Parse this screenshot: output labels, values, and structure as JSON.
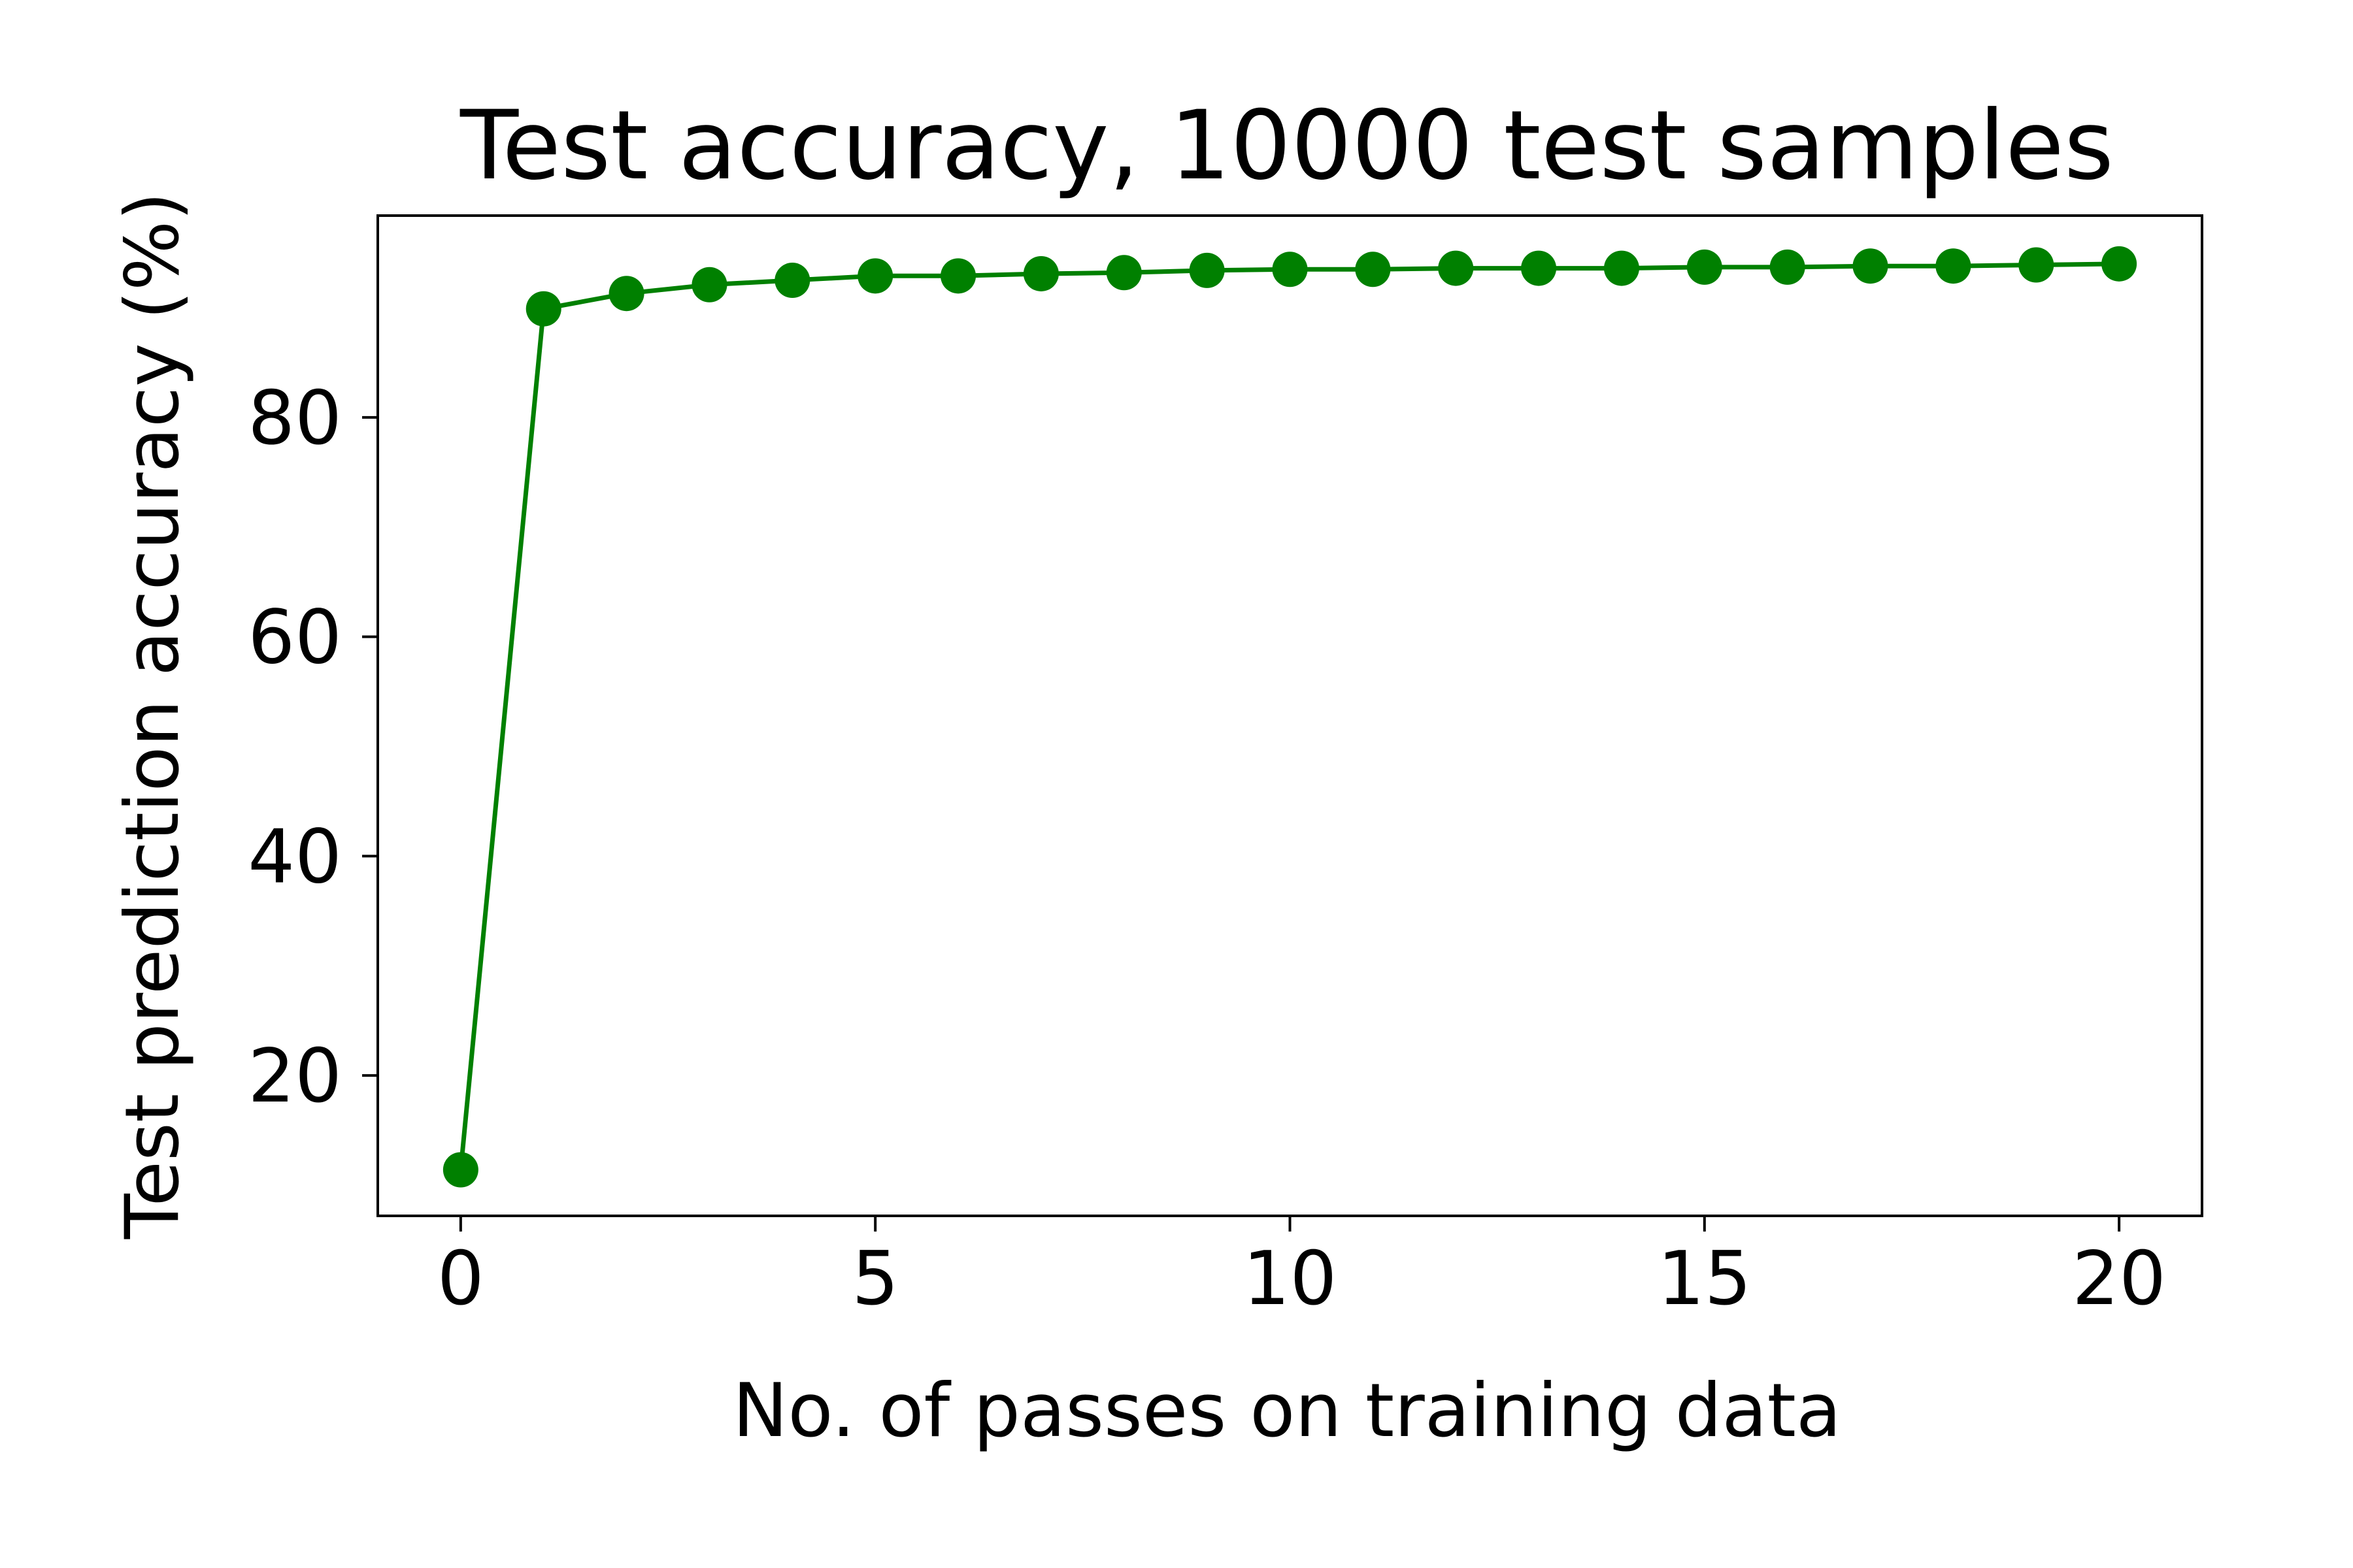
{
  "chart_data": {
    "type": "line",
    "title": "Test accuracy, 10000 test samples",
    "xlabel": "No. of passes on training data",
    "ylabel": "Test prediction accuracy (%)",
    "xlim": [
      -1,
      21
    ],
    "ylim": [
      7.2,
      98.4
    ],
    "xticks": [
      0,
      5,
      10,
      15,
      20
    ],
    "yticks": [
      20,
      40,
      60,
      80
    ],
    "grid": false,
    "series": [
      {
        "color": "#008000",
        "marker": "circle",
        "x": [
          0,
          1,
          2,
          3,
          4,
          5,
          6,
          7,
          8,
          9,
          10,
          11,
          12,
          13,
          14,
          15,
          16,
          17,
          18,
          19,
          20
        ],
        "y": [
          11.4,
          89.9,
          91.3,
          92.1,
          92.5,
          92.9,
          92.9,
          93.1,
          93.2,
          93.4,
          93.5,
          93.5,
          93.6,
          93.6,
          93.6,
          93.7,
          93.7,
          93.8,
          93.8,
          93.9,
          94.0
        ]
      }
    ]
  }
}
